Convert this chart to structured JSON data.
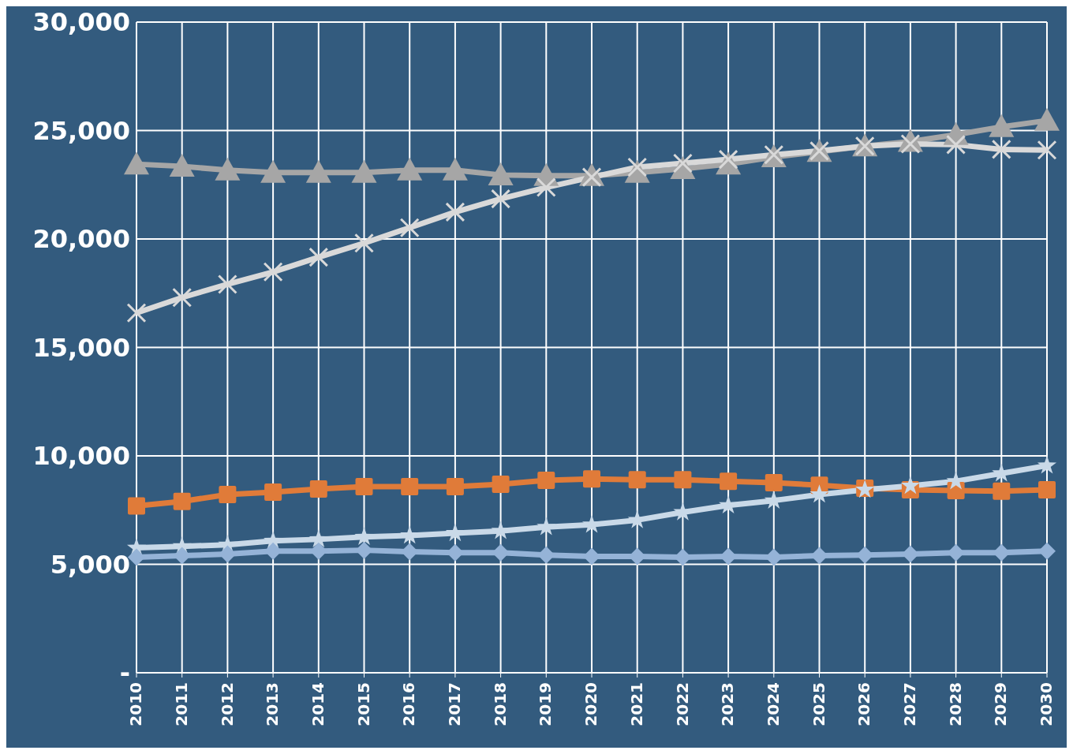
{
  "chart_data": {
    "type": "line",
    "categories": [
      "2010",
      "2011",
      "2012",
      "2013",
      "2014",
      "2015",
      "2016",
      "2017",
      "2018",
      "2019",
      "2020",
      "2021",
      "2022",
      "2023",
      "2024",
      "2025",
      "2026",
      "2027",
      "2028",
      "2029",
      "2030"
    ],
    "series": [
      {
        "color": "#a6a6a6",
        "marker": "triangle",
        "values": [
          23450,
          23350,
          23170,
          23060,
          23060,
          23060,
          23170,
          23170,
          22950,
          22920,
          22920,
          23060,
          23240,
          23450,
          23780,
          24030,
          24280,
          24490,
          24810,
          25170,
          25460
        ]
      },
      {
        "color": "#d9d9d9",
        "marker": "cross",
        "values": [
          16590,
          17300,
          17910,
          18480,
          19160,
          19810,
          20520,
          21240,
          21850,
          22380,
          22850,
          23310,
          23490,
          23670,
          23880,
          24060,
          24280,
          24380,
          24350,
          24130,
          24100
        ]
      },
      {
        "color": "#e07b39",
        "marker": "square",
        "values": [
          7690,
          7900,
          8220,
          8330,
          8470,
          8580,
          8580,
          8580,
          8690,
          8870,
          8940,
          8900,
          8900,
          8830,
          8760,
          8650,
          8510,
          8440,
          8400,
          8370,
          8440
        ]
      },
      {
        "color": "#c9d9e8",
        "marker": "star",
        "values": [
          5760,
          5830,
          5900,
          6080,
          6150,
          6260,
          6330,
          6440,
          6540,
          6720,
          6830,
          7040,
          7400,
          7720,
          7940,
          8220,
          8440,
          8620,
          8830,
          9190,
          9550
        ]
      },
      {
        "color": "#95b3d7",
        "marker": "diamond",
        "values": [
          5330,
          5400,
          5470,
          5610,
          5610,
          5650,
          5580,
          5540,
          5540,
          5430,
          5360,
          5360,
          5330,
          5360,
          5330,
          5400,
          5430,
          5470,
          5540,
          5540,
          5610
        ]
      }
    ],
    "ylim": [
      0,
      30000
    ],
    "yticks": [
      {
        "value": 0,
        "label": "-"
      },
      {
        "value": 5000,
        "label": "5,000"
      },
      {
        "value": 10000,
        "label": "10,000"
      },
      {
        "value": 15000,
        "label": "15,000"
      },
      {
        "value": 20000,
        "label": "20,000"
      },
      {
        "value": 25000,
        "label": "25,000"
      },
      {
        "value": 30000,
        "label": "30,000"
      }
    ],
    "grid": true,
    "legend": false,
    "line_style": "solid"
  }
}
